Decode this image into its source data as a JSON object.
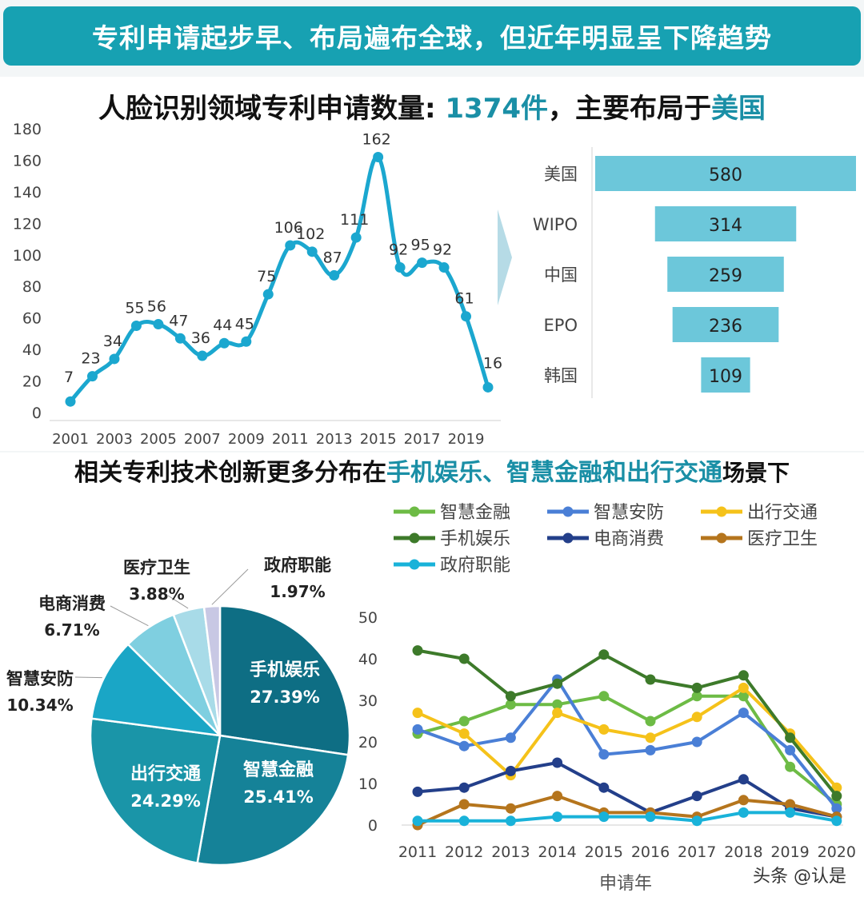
{
  "banner": {
    "title": "专利申请起步早、布局遍布全球，但近年明显呈下降趋势"
  },
  "headline1": {
    "prefix": "人脸识别领域专利申请数量: ",
    "count": "1374件",
    "middle": "，主要布局于",
    "country": "美国"
  },
  "headline2": {
    "prefix": "相关专利技术创新更多分布在",
    "highlight": "手机娱乐、智慧金融和出行交通",
    "suffix": "场景下"
  },
  "colors": {
    "banner": "#17a1b2",
    "accent": "#1a8fa6",
    "line_main": "#1ba7cf",
    "bar": "#6cc7da",
    "pie_dark": "#0e6e84"
  },
  "watermark": "头条 @认是",
  "chart_data": [
    {
      "id": "annual-applications",
      "type": "line",
      "x": [
        2001,
        2002,
        2003,
        2004,
        2005,
        2006,
        2007,
        2008,
        2009,
        2010,
        2011,
        2012,
        2013,
        2014,
        2015,
        2016,
        2017,
        2018,
        2019,
        2020
      ],
      "values": [
        7,
        23,
        34,
        55,
        56,
        47,
        36,
        44,
        45,
        75,
        106,
        102,
        87,
        111,
        162,
        92,
        95,
        92,
        61,
        16
      ],
      "x_tick_labels": [
        "2001",
        "2003",
        "2005",
        "2007",
        "2009",
        "2011",
        "2013",
        "2015",
        "2017",
        "2019"
      ],
      "y_ticks": [
        0,
        20,
        40,
        60,
        80,
        100,
        120,
        140,
        160,
        180
      ],
      "ylim": [
        0,
        180
      ],
      "grid": false
    },
    {
      "id": "top-jurisdictions",
      "type": "bar",
      "orientation": "horizontal",
      "categories": [
        "美国",
        "WIPO",
        "中国",
        "EPO",
        "韩国"
      ],
      "values": [
        580,
        314,
        259,
        236,
        109
      ]
    },
    {
      "id": "scenario-share",
      "type": "pie",
      "slices": [
        {
          "label": "手机娱乐",
          "value": 27.39,
          "display": "27.39%",
          "color": "#0e6e84"
        },
        {
          "label": "智慧金融",
          "value": 25.41,
          "display": "25.41%",
          "color": "#158298"
        },
        {
          "label": "出行交通",
          "value": 24.29,
          "display": "24.29%",
          "color": "#1a95a8"
        },
        {
          "label": "智慧安防",
          "value": 10.34,
          "display": "10.34%",
          "color": "#1aa6c6"
        },
        {
          "label": "电商消费",
          "value": 6.71,
          "display": "6.71%",
          "color": "#7fcfe0"
        },
        {
          "label": "医疗卫生",
          "value": 3.88,
          "display": "3.88%",
          "color": "#a8dbe8"
        },
        {
          "label": "政府职能",
          "value": 1.97,
          "display": "1.97%",
          "color": "#c8c8e4"
        }
      ]
    },
    {
      "id": "scenario-trend",
      "type": "line",
      "categories": [
        "2011",
        "2012",
        "2013",
        "2014",
        "2015",
        "2016",
        "2017",
        "2018",
        "2019",
        "2020"
      ],
      "xlabel": "申请年",
      "y_ticks": [
        0,
        10,
        20,
        30,
        40,
        50
      ],
      "ylim": [
        0,
        50
      ],
      "legend_position": "top",
      "series": [
        {
          "name": "智慧金融",
          "color": "#6dbb45",
          "values": [
            22,
            25,
            29,
            29,
            31,
            25,
            31,
            31,
            14,
            5
          ]
        },
        {
          "name": "智慧安防",
          "color": "#4a7fd6",
          "values": [
            23,
            19,
            21,
            35,
            17,
            18,
            20,
            27,
            18,
            4
          ]
        },
        {
          "name": "出行交通",
          "color": "#f5c21a",
          "values": [
            27,
            22,
            12,
            27,
            23,
            21,
            26,
            33,
            22,
            9
          ]
        },
        {
          "name": "手机娱乐",
          "color": "#3d7a2a",
          "values": [
            42,
            40,
            31,
            34,
            41,
            35,
            33,
            36,
            21,
            7
          ]
        },
        {
          "name": "电商消费",
          "color": "#233f8a",
          "values": [
            8,
            9,
            13,
            15,
            9,
            3,
            7,
            11,
            4,
            2
          ]
        },
        {
          "name": "医疗卫生",
          "color": "#b5751d",
          "values": [
            0,
            5,
            4,
            7,
            3,
            3,
            2,
            6,
            5,
            2
          ]
        },
        {
          "name": "政府职能",
          "color": "#19b2d9",
          "values": [
            1,
            1,
            1,
            2,
            2,
            2,
            1,
            3,
            3,
            1
          ]
        }
      ]
    }
  ]
}
